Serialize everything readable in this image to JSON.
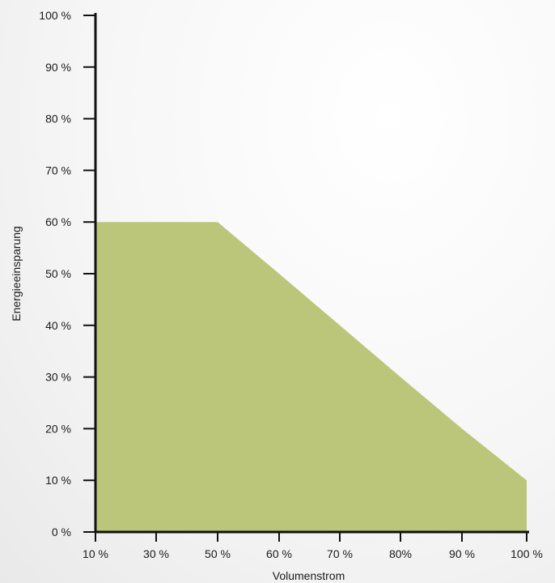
{
  "chart_data": {
    "type": "area",
    "title": "",
    "xlabel": "Volumenstrom",
    "ylabel": "Energieeinsparung",
    "x_tick_labels": [
      "10 %",
      "30 %",
      "50 %",
      "60 %",
      "70 %",
      "80%",
      "90 %",
      "100 %"
    ],
    "y_tick_labels": [
      "0 %",
      "10 %",
      "20 %",
      "30 %",
      "40 %",
      "50 %",
      "60 %",
      "70 %",
      "80 %",
      "90 %",
      "100 %"
    ],
    "y_tick_values": [
      0,
      10,
      20,
      30,
      40,
      50,
      60,
      70,
      80,
      90,
      100
    ],
    "ylim": [
      0,
      100
    ],
    "series": [
      {
        "points": [
          {
            "x": "10 %",
            "y": 60
          },
          {
            "x": "50 %",
            "y": 60
          },
          {
            "x": "60 %",
            "y": 50
          },
          {
            "x": "70 %",
            "y": 40
          },
          {
            "x": "80%",
            "y": 30
          },
          {
            "x": "90 %",
            "y": 20
          },
          {
            "x": "100 %",
            "y": 10
          }
        ]
      }
    ],
    "fill_color": "#bcc67a",
    "axis_color": "#111111",
    "grid": false,
    "legend": "none"
  }
}
